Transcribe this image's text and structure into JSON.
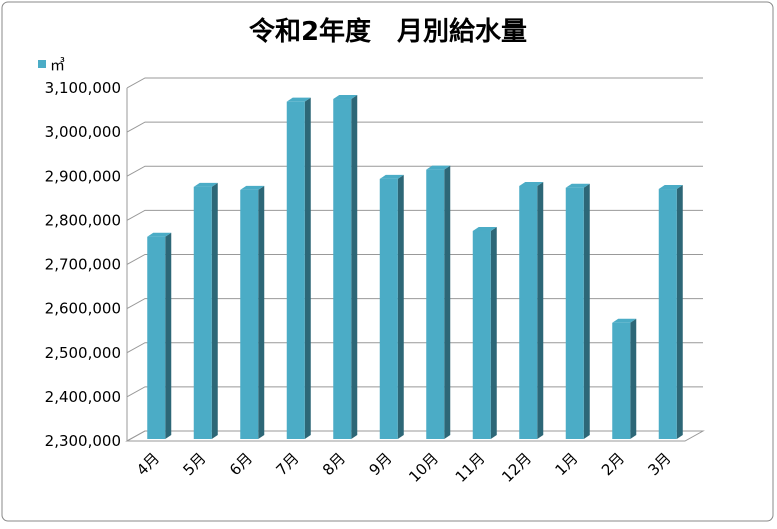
{
  "chart_data": {
    "type": "bar3d",
    "title": "令和2年度　月別給水量",
    "categories": [
      "4月",
      "5月",
      "6月",
      "7月",
      "8月",
      "9月",
      "10月",
      "11月",
      "12月",
      "1月",
      "2月",
      "3月"
    ],
    "series": [
      {
        "name": "㎥",
        "color": "#4bacc6",
        "values": [
          2763000,
          2876000,
          2869000,
          3069000,
          3075000,
          2894000,
          2915000,
          2776000,
          2878000,
          2874000,
          2568000,
          2871000
        ]
      }
    ],
    "ylim": [
      2300000,
      3100000
    ],
    "yticks": [
      {
        "value": 2300000,
        "label": "2,300,000"
      },
      {
        "value": 2400000,
        "label": "2,400,000"
      },
      {
        "value": 2500000,
        "label": "2,500,000"
      },
      {
        "value": 2600000,
        "label": "2,600,000"
      },
      {
        "value": 2700000,
        "label": "2,700,000"
      },
      {
        "value": 2800000,
        "label": "2,800,000"
      },
      {
        "value": 2900000,
        "label": "2,900,000"
      },
      {
        "value": 3000000,
        "label": "3,000,000"
      },
      {
        "value": 3100000,
        "label": "3,100,000"
      }
    ],
    "grid": true,
    "legend": "top-left"
  }
}
